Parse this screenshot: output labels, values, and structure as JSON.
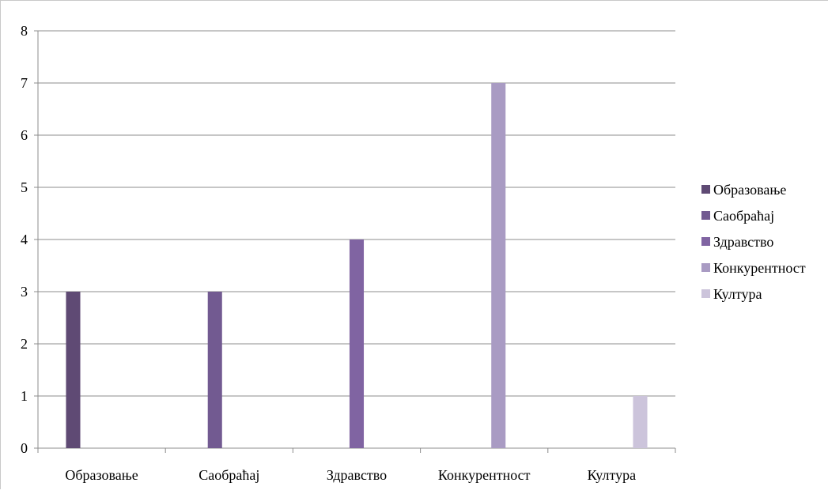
{
  "chart_data": {
    "type": "bar",
    "title": "",
    "xlabel": "",
    "ylabel": "",
    "categories": [
      "Образовање",
      "Саобраћај",
      "Здравство",
      "Конкурентност",
      "Култура"
    ],
    "series": [
      {
        "name": "Образовање",
        "color": "#5f4a74",
        "values": [
          3,
          null,
          null,
          null,
          null
        ]
      },
      {
        "name": "Саобраћај",
        "color": "#725a91",
        "values": [
          null,
          3,
          null,
          null,
          null
        ]
      },
      {
        "name": "Здравство",
        "color": "#8064a2",
        "values": [
          null,
          null,
          4,
          null,
          null
        ]
      },
      {
        "name": "Конкурентност",
        "color": "#a99bc3",
        "values": [
          null,
          null,
          null,
          7,
          null
        ]
      },
      {
        "name": "Култура",
        "color": "#ccc4db",
        "values": [
          null,
          null,
          null,
          null,
          1
        ]
      }
    ],
    "ylim": [
      0,
      8
    ],
    "yticks": [
      "0",
      "1",
      "2",
      "3",
      "4",
      "5",
      "6",
      "7",
      "8"
    ],
    "grid": true,
    "legend_position": "right"
  }
}
